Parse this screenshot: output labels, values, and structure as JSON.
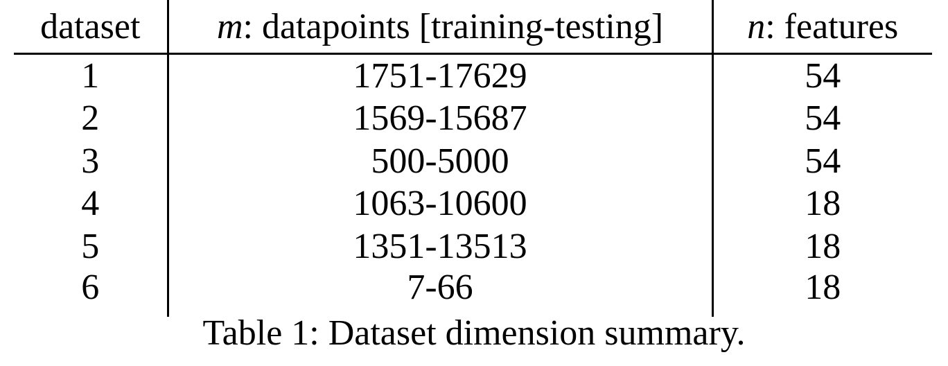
{
  "table": {
    "headers": [
      {
        "var": "",
        "text": "dataset"
      },
      {
        "var": "m",
        "text": ": datapoints [training-testing]"
      },
      {
        "var": "n",
        "text": ": features"
      }
    ],
    "rows": [
      {
        "dataset": "1",
        "datapoints": "1751-17629",
        "features": "54"
      },
      {
        "dataset": "2",
        "datapoints": "1569-15687",
        "features": "54"
      },
      {
        "dataset": "3",
        "datapoints": "500-5000",
        "features": "54"
      },
      {
        "dataset": "4",
        "datapoints": "1063-10600",
        "features": "18"
      },
      {
        "dataset": "5",
        "datapoints": "1351-13513",
        "features": "18"
      },
      {
        "dataset": "6",
        "datapoints": "7-66",
        "features": "18"
      }
    ]
  },
  "caption": "Table 1: Dataset dimension summary."
}
